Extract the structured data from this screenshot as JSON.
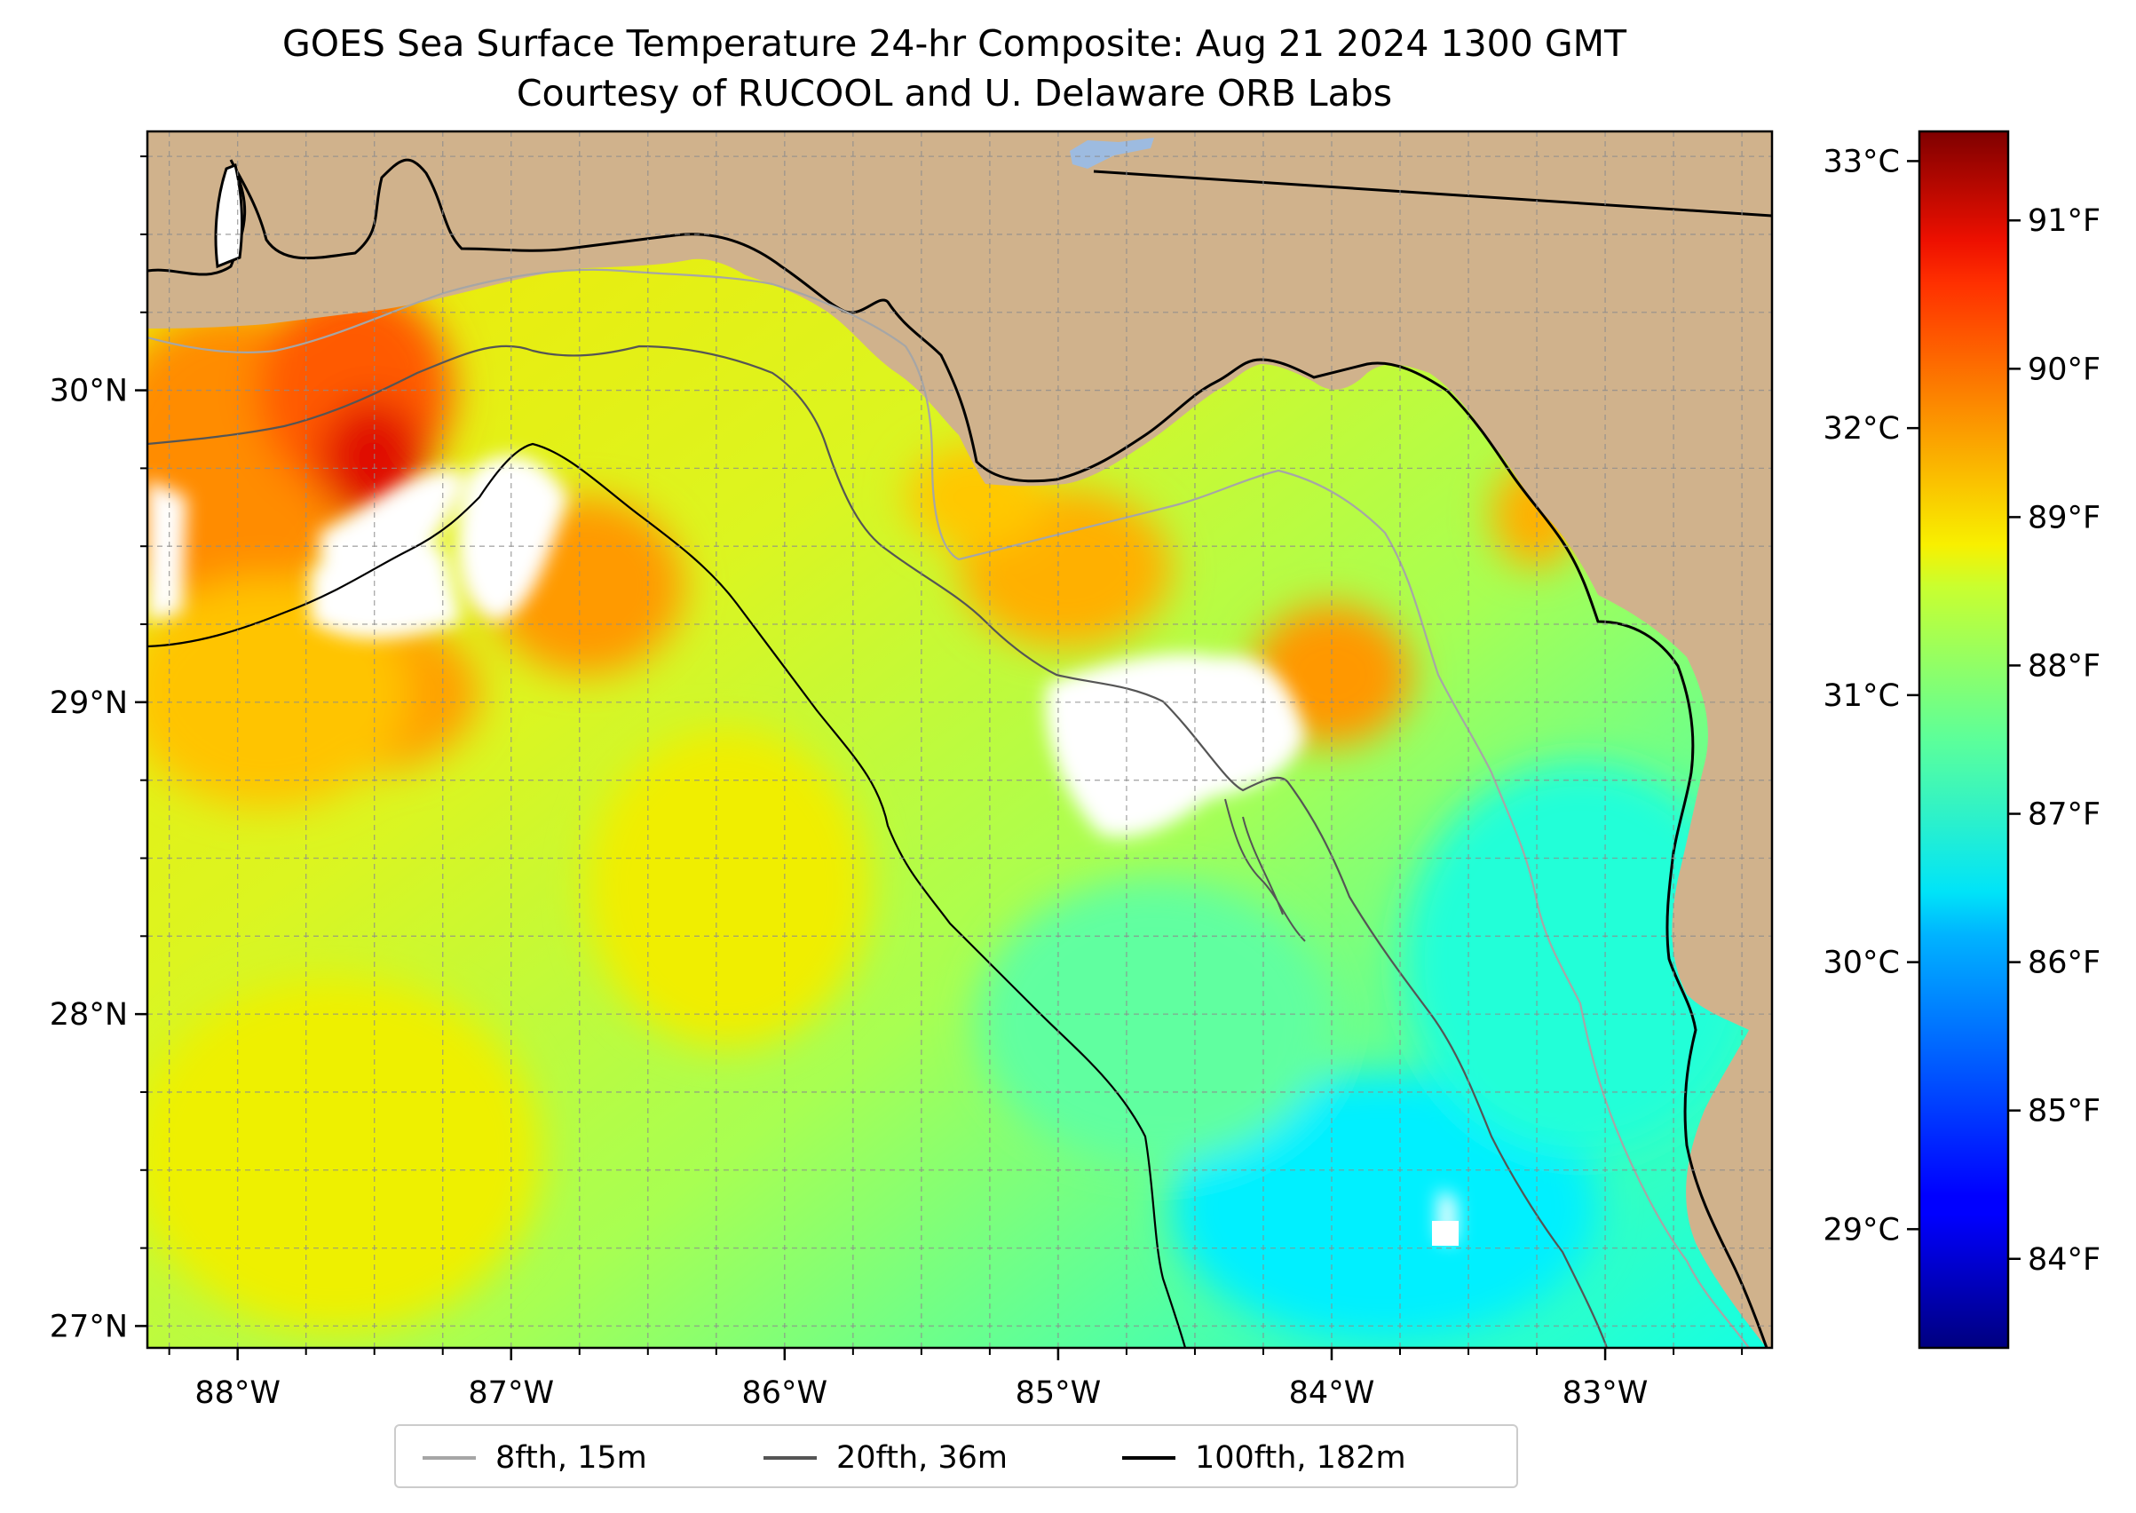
{
  "title": "GOES Sea Surface Temperature 24-hr Composite: Aug 21 2024 1300 GMT",
  "subtitle": "Courtesy of RUCOOL and U. Delaware ORB Labs",
  "map": {
    "lon_range": [
      -88.33,
      -82.39
    ],
    "lat_range": [
      26.93,
      30.83
    ],
    "lon_ticks": [
      "88°W",
      "87°W",
      "86°W",
      "85°W",
      "84°W",
      "83°W"
    ],
    "lon_tick_values": [
      -88,
      -87,
      -86,
      -85,
      -84,
      -83
    ],
    "lat_ticks": [
      "27°N",
      "28°N",
      "29°N",
      "30°N"
    ],
    "lat_tick_values": [
      27,
      28,
      29,
      30
    ],
    "land_color": "#d0b28c",
    "no_data_color": "#ffffff",
    "lake_color": "#9dbbe0",
    "grid": "dashed"
  },
  "colorbar": {
    "colormap": "jet",
    "fahrenheit_ticks": [
      "84°F",
      "85°F",
      "86°F",
      "87°F",
      "88°F",
      "89°F",
      "90°F",
      "91°F"
    ],
    "fahrenheit_values": [
      84,
      85,
      86,
      87,
      88,
      89,
      90,
      91
    ],
    "celsius_ticks": [
      "29°C",
      "30°C",
      "31°C",
      "32°C",
      "33°C"
    ],
    "celsius_values": [
      29,
      30,
      31,
      32,
      33
    ],
    "range_f": [
      83.4,
      91.6
    ]
  },
  "legend": {
    "items": [
      {
        "label": "8fth, 15m",
        "color": "#a6a6a6"
      },
      {
        "label": "20fth, 36m",
        "color": "#555555"
      },
      {
        "label": "100fth, 182m",
        "color": "#000000"
      }
    ]
  }
}
